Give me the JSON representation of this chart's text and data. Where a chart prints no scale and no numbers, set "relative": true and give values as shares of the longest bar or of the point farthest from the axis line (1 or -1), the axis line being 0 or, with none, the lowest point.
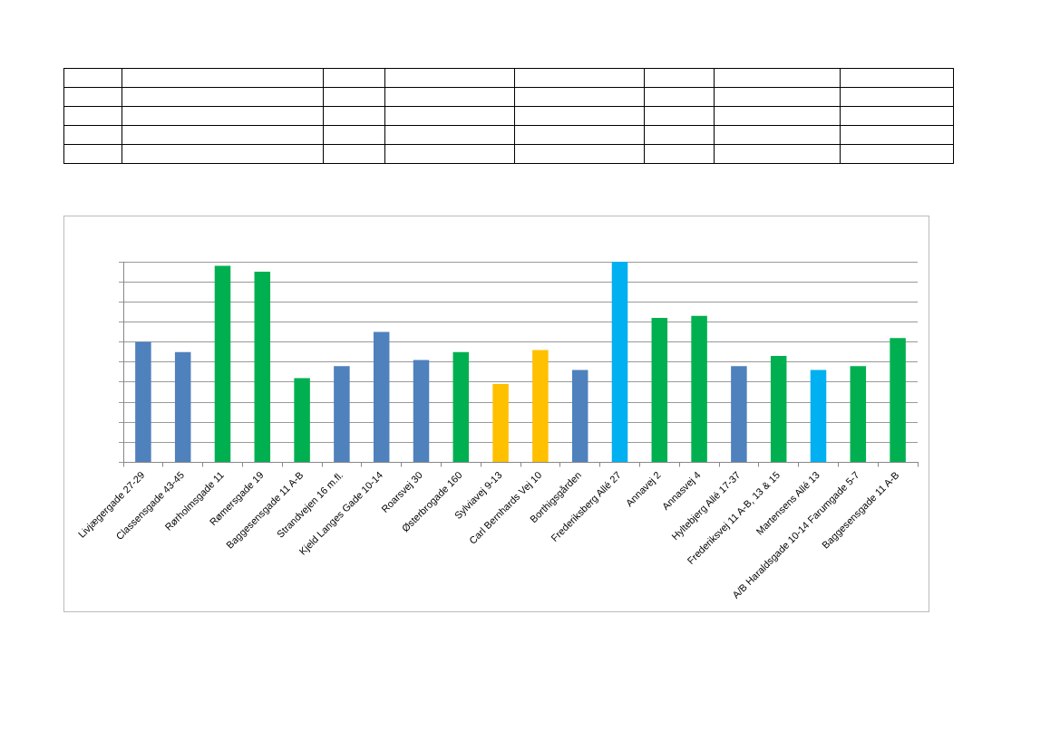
{
  "chart_data": {
    "type": "bar",
    "relative": true,
    "grid": "y",
    "legend": false,
    "categories": [
      "Livjægergade 27-29",
      "Classensgade 43-45",
      "Rørholmsgade 11",
      "Rømersgade 19",
      "Baggesensgade 11 A-B",
      "Strandvejen 16 m.fl.",
      "Kjeld Langes Gade 10-14",
      "Roarsvej 30",
      "Østerbrogade 160",
      "Sylviavej 9-13",
      "Carl Bernhards Vej 10",
      "Borthigsgården",
      "Frederiksberg Allé 27",
      "Annavej 2",
      "Annasvej 4",
      "Hyltebjerg Allé 17-37",
      "Frederiksvej 11 A-B, 13 & 15",
      "Martensens Allé 13",
      "A/B Haraldsgade 10-14 Farumgade 5-7",
      "Baggesensgade 11 A-B"
    ],
    "values": [
      0.6,
      0.55,
      0.98,
      0.95,
      0.42,
      0.48,
      0.65,
      0.51,
      0.55,
      0.39,
      0.56,
      0.46,
      1,
      0.72,
      0.73,
      0.48,
      0.53,
      0.46,
      0.48,
      0.62
    ],
    "colors": [
      "#4f81bd",
      "#4f81bd",
      "#00b050",
      "#00b050",
      "#00b050",
      "#4f81bd",
      "#4f81bd",
      "#4f81bd",
      "#00b050",
      "#ffc000",
      "#ffc000",
      "#4f81bd",
      "#00b0f0",
      "#00b050",
      "#00b050",
      "#4f81bd",
      "#00b050",
      "#00b0f0",
      "#00b050",
      "#00b050"
    ]
  }
}
